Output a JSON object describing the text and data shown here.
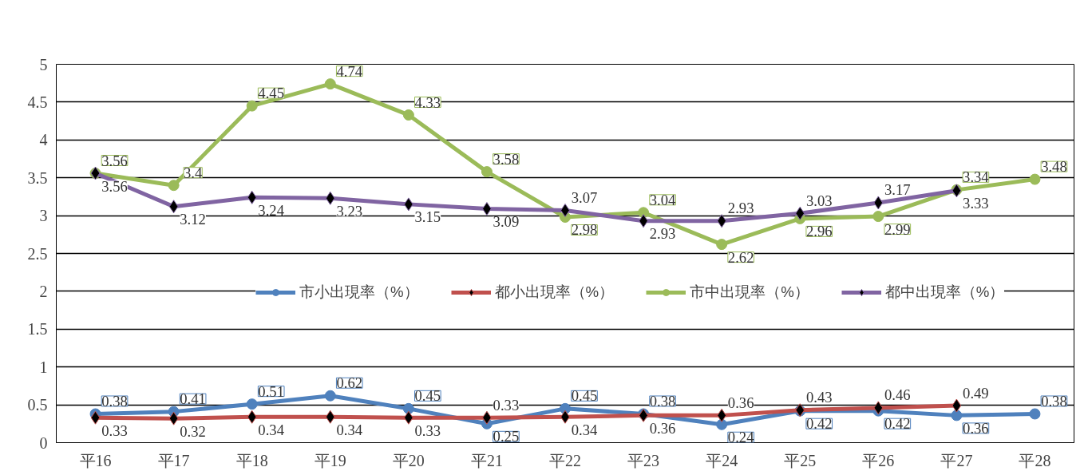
{
  "chart_data": {
    "type": "line",
    "categories": [
      "平16",
      "平17",
      "平18",
      "平19",
      "平20",
      "平21",
      "平22",
      "平23",
      "平24",
      "平25",
      "平26",
      "平27",
      "平28"
    ],
    "series": [
      {
        "name": "市小出現率（%）",
        "color": "#4f81bd",
        "marker": "circle",
        "values": [
          0.38,
          0.41,
          0.51,
          0.62,
          0.45,
          0.25,
          0.45,
          0.38,
          0.24,
          0.42,
          0.42,
          0.36,
          0.38
        ]
      },
      {
        "name": "都小出現率（%）",
        "color": "#c0504d",
        "marker": "diamond",
        "values": [
          0.33,
          0.32,
          0.34,
          0.34,
          0.33,
          0.33,
          0.34,
          0.36,
          0.36,
          0.43,
          0.46,
          0.49,
          null
        ]
      },
      {
        "name": "市中出現率（%）",
        "color": "#9bbb59",
        "marker": "circle",
        "values": [
          3.56,
          3.4,
          4.45,
          4.74,
          4.33,
          3.58,
          2.98,
          3.04,
          2.62,
          2.96,
          2.99,
          3.34,
          3.48
        ]
      },
      {
        "name": "都中出現率（%）",
        "color": "#8064a2",
        "marker": "diamond",
        "values": [
          3.56,
          3.12,
          3.24,
          3.23,
          3.15,
          3.09,
          3.07,
          2.93,
          2.93,
          3.03,
          3.17,
          3.33,
          null
        ]
      }
    ],
    "ylim": [
      0,
      5
    ],
    "yticks": [
      0,
      0.5,
      1,
      1.5,
      2,
      2.5,
      3,
      3.5,
      4,
      4.5,
      5
    ],
    "grid": "y",
    "legend": "center",
    "data_labels": true,
    "line_style": "solid"
  }
}
